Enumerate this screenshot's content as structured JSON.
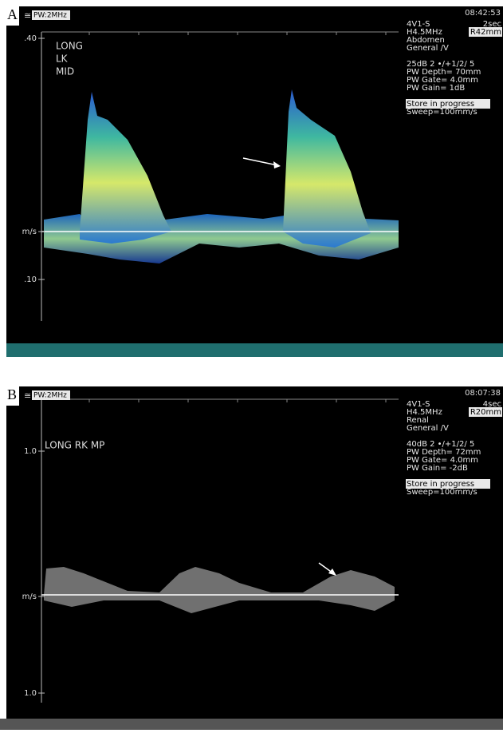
{
  "panels": [
    {
      "label": "A",
      "mode": "PW:2MHz",
      "clock": "08:42:53",
      "scale": [
        ".40",
        "m/s",
        ".10"
      ],
      "notes": [
        "LONG",
        "LK",
        "MID"
      ],
      "info": [
        [
          "4V1-S",
          "2sec"
        ],
        [
          "H4.5MHz",
          "R42mm"
        ],
        [
          "Abdomen"
        ],
        [
          "General /V"
        ],
        [
          "25dB 2 •/+1/2/ 5"
        ],
        [
          "PW Depth= 70mm"
        ],
        [
          "PW Gate= 4.0mm"
        ],
        [
          "PW Gain=   1dB"
        ],
        [
          "Store in progress"
        ],
        [
          "Sweep=100mm/s"
        ]
      ]
    },
    {
      "label": "B",
      "mode": "PW:2MHz",
      "clock": "08:07:38",
      "scale": [
        "1.0",
        "m/s",
        "1.0"
      ],
      "notes": [
        "LONG RK MP"
      ],
      "info": [
        [
          "4V1-S",
          "4sec"
        ],
        [
          "H4.5MHz",
          "R20mm"
        ],
        [
          "Renal"
        ],
        [
          "General /V"
        ],
        [
          "40dB 2 •/+1/2/ 5"
        ],
        [
          "PW Depth= 72mm"
        ],
        [
          "PW Gate= 4.0mm"
        ],
        [
          "PW Gain= -2dB"
        ],
        [
          "Store in progress"
        ],
        [
          "Sweep=100mm/s"
        ]
      ]
    }
  ]
}
